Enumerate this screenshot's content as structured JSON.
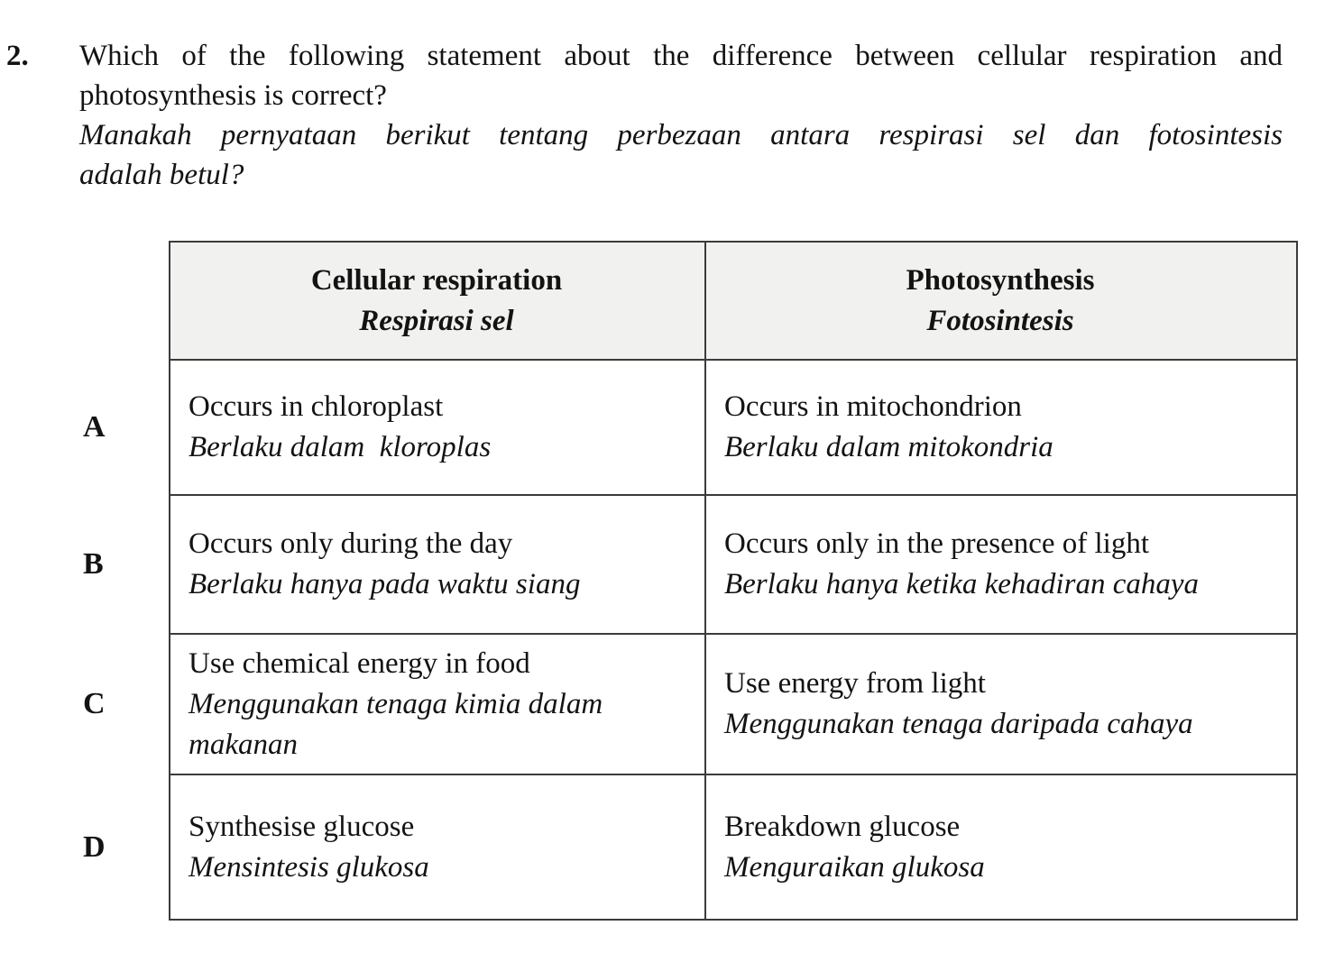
{
  "colors": {
    "header_background": "#f1f1f0",
    "table_border": "#3b3b3b",
    "text": "#131313",
    "page_background": "#ffffff"
  },
  "question": {
    "number": "2.",
    "text_en": [
      "Which of the following statement about the difference between cellular respiration and",
      "photosynthesis is correct?"
    ],
    "text_ms": [
      "Manakah pernyataan berikut tentang perbezaan antara respirasi sel dan fotosintesis",
      "adalah betul?"
    ]
  },
  "table": {
    "headers": [
      {
        "en": "Cellular respiration",
        "ms": "Respirasi sel"
      },
      {
        "en": "Photosynthesis",
        "ms": "Fotosintesis"
      }
    ],
    "options": [
      {
        "letter": "A",
        "cellular_respiration": {
          "en": "Occurs in chloroplast",
          "ms": "Berlaku dalam  kloroplas"
        },
        "photosynthesis": {
          "en": "Occurs in mitochondrion",
          "ms": "Berlaku dalam mitokondria"
        }
      },
      {
        "letter": "B",
        "cellular_respiration": {
          "en": "Occurs only during the day",
          "ms": "Berlaku hanya pada waktu siang"
        },
        "photosynthesis": {
          "en": "Occurs only in the presence of light",
          "ms": "Berlaku hanya ketika kehadiran cahaya"
        }
      },
      {
        "letter": "C",
        "cellular_respiration": {
          "en": "Use chemical energy in food",
          "ms": "Menggunakan tenaga kimia dalam makanan"
        },
        "photosynthesis": {
          "en": "Use energy from light",
          "ms": "Menggunakan tenaga daripada cahaya"
        }
      },
      {
        "letter": "D",
        "cellular_respiration": {
          "en": "Synthesise glucose",
          "ms": "Mensintesis glukosa"
        },
        "photosynthesis": {
          "en": "Breakdown glucose",
          "ms": "Menguraikan glukosa"
        }
      }
    ]
  }
}
